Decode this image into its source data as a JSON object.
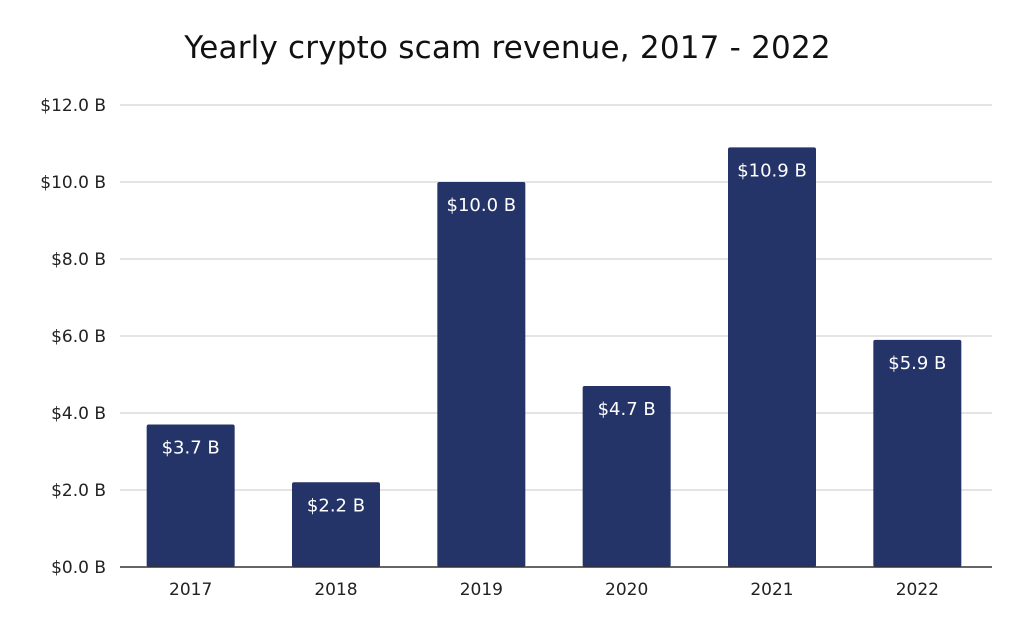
{
  "chart_data": {
    "type": "bar",
    "title": "Yearly crypto scam revenue, 2017 - 2022",
    "xlabel": "",
    "ylabel": "",
    "categories": [
      "2017",
      "2018",
      "2019",
      "2020",
      "2021",
      "2022"
    ],
    "values": [
      3.7,
      2.2,
      10.0,
      4.7,
      10.9,
      5.9
    ],
    "data_labels": [
      "$3.7 B",
      "$2.2 B",
      "$10.0 B",
      "$4.7 B",
      "$10.9 B",
      "$5.9 B"
    ],
    "ylim": [
      0,
      12
    ],
    "yticks": [
      {
        "value": 0,
        "label": "$0.0 B"
      },
      {
        "value": 2,
        "label": "$2.0 B"
      },
      {
        "value": 4,
        "label": "$4.0 B"
      },
      {
        "value": 6,
        "label": "$6.0 B"
      },
      {
        "value": 8,
        "label": "$8.0 B"
      },
      {
        "value": 10,
        "label": "$10.0 B"
      },
      {
        "value": 12,
        "label": "$12.0 B"
      }
    ],
    "grid": true,
    "legend": "none",
    "bar_color": "#243468",
    "grid_color": "#d4d4d4",
    "axis_color": "#333333"
  }
}
